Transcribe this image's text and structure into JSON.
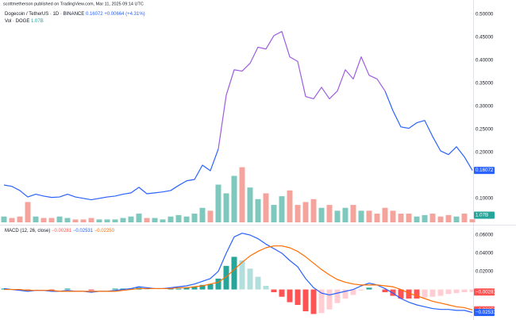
{
  "chart_data": {
    "type": "line",
    "attribution": "scottmetherson published on TradingView.com, Mar 11, 2025 09:14 UTC",
    "title": "Dogecoin / TetherUS · 1D · BINANCE",
    "last_price": "0.16072",
    "change": "+0.00664 (+4.31%)",
    "volume_title": "Vol · DOGE",
    "volume_label": "1.07B",
    "ylim": [
      0.048,
      0.52
    ],
    "yticks": [
      {
        "value": 0.5,
        "label": "0.50000"
      },
      {
        "value": 0.45,
        "label": "0.45000"
      },
      {
        "value": 0.4,
        "label": "0.40000"
      },
      {
        "value": 0.35,
        "label": "0.35000"
      },
      {
        "value": 0.3,
        "label": "0.30000"
      },
      {
        "value": 0.25,
        "label": "0.25000"
      },
      {
        "value": 0.2,
        "label": "0.20000"
      },
      {
        "value": 0.1,
        "label": "0.10000"
      }
    ],
    "series": [
      {
        "color": "#2962ff",
        "values": [
          0.129,
          0.126,
          0.117,
          0.103,
          0.109,
          0.105,
          0.102,
          0.103,
          0.109,
          0.103,
          0.1,
          0.097,
          0.1,
          0.103,
          0.105,
          0.109,
          0.112,
          0.124,
          0.11,
          0.112,
          0.114,
          0.117,
          0.128,
          0.138,
          0.141,
          0.172,
          0.16,
          0.207,
          null,
          null,
          null,
          null,
          null,
          null,
          null,
          null,
          null,
          null,
          null,
          null,
          null,
          null,
          null,
          null,
          null,
          null,
          null,
          null,
          0.333,
          0.29,
          0.255,
          0.252,
          0.264,
          0.269,
          0.234,
          0.203,
          0.195,
          0.212,
          0.19,
          0.16072
        ]
      },
      {
        "color": "#9c5ce0",
        "values": [
          null,
          null,
          null,
          null,
          null,
          null,
          null,
          null,
          null,
          null,
          null,
          null,
          null,
          null,
          null,
          null,
          null,
          null,
          null,
          null,
          null,
          null,
          null,
          null,
          null,
          null,
          null,
          0.207,
          0.324,
          0.379,
          0.376,
          0.393,
          0.428,
          0.424,
          0.453,
          0.462,
          0.407,
          0.397,
          0.321,
          0.316,
          0.341,
          0.316,
          0.333,
          0.379,
          0.359,
          0.407,
          0.367,
          0.359,
          0.333,
          null,
          null,
          null,
          null,
          null,
          null,
          null,
          null,
          null,
          null,
          null
        ]
      }
    ],
    "volume": {
      "up_color": "#7fc8bd",
      "down_color": "#f4a49c",
      "ylim": [
        0,
        75
      ],
      "values": [
        2,
        1.5,
        2,
        7,
        2,
        1.5,
        1.5,
        2,
        1.5,
        1,
        1,
        1.5,
        1,
        1,
        1,
        1.5,
        2,
        3,
        1.5,
        1.5,
        1,
        2,
        2.5,
        2,
        3,
        5,
        4,
        13,
        10,
        16,
        19,
        12,
        8,
        10,
        6,
        9,
        11,
        6,
        7,
        8,
        5,
        6,
        4,
        5,
        6,
        4,
        4,
        3,
        5,
        4,
        3,
        3,
        2,
        2.5,
        3,
        2,
        2.5,
        2,
        3,
        1.07
      ]
    },
    "macd": {
      "legend": "MACD (12, 26, close)",
      "value_labels": [
        "−0.00281",
        "−0.02531",
        "−0.02250"
      ],
      "ylim": [
        -0.031,
        0.067
      ],
      "yticks": [
        {
          "value": 0.06,
          "label": "0.06000"
        },
        {
          "value": 0.04,
          "label": "0.04000"
        },
        {
          "value": 0.02,
          "label": "0.02000"
        }
      ],
      "histogram": {
        "colors": [
          "#26a69a",
          "#b2dfdb",
          "#ffcdd2",
          "#ff5252"
        ],
        "values": [
          0.001,
          0,
          -0.001,
          -0.001,
          0,
          0,
          -0.001,
          0,
          0.001,
          0,
          0,
          -0.001,
          0,
          0,
          0.001,
          0.001,
          0.001,
          0.002,
          0.001,
          0,
          0,
          0.001,
          0.001,
          0.002,
          0.003,
          0.005,
          0.006,
          0.012,
          0.026,
          0.036,
          0.032,
          0.023,
          0.014,
          0.004,
          -0.003,
          -0.008,
          -0.014,
          -0.017,
          -0.024,
          -0.027,
          -0.026,
          -0.022,
          -0.015,
          -0.01,
          -0.006,
          -0.001,
          0.002,
          0,
          -0.003,
          -0.007,
          -0.01,
          -0.01,
          -0.01,
          -0.009,
          -0.008,
          -0.007,
          -0.005,
          -0.004,
          -0.003,
          -0.00281
        ]
      },
      "lines": [
        {
          "color": "#2962ff",
          "values": [
            0.001,
            0,
            -0.001,
            -0.002,
            -0.001,
            -0.001,
            -0.002,
            -0.002,
            -0.001,
            -0.002,
            -0.002,
            -0.003,
            -0.002,
            -0.002,
            -0.001,
            0,
            0.001,
            0.003,
            0.002,
            0.001,
            0.001,
            0.002,
            0.003,
            0.004,
            0.006,
            0.009,
            0.012,
            0.02,
            0.04,
            0.058,
            0.062,
            0.06,
            0.056,
            0.05,
            0.045,
            0.04,
            0.032,
            0.025,
            0.012,
            0.002,
            -0.004,
            -0.006,
            -0.004,
            -0.002,
            0,
            0.004,
            0.007,
            0.005,
            0.001,
            -0.004,
            -0.01,
            -0.014,
            -0.017,
            -0.019,
            -0.021,
            -0.022,
            -0.022,
            -0.023,
            -0.023,
            -0.02531
          ]
        },
        {
          "color": "#ff6d00",
          "values": [
            0,
            0,
            0,
            -0.001,
            -0.001,
            -0.001,
            -0.001,
            -0.002,
            -0.002,
            -0.002,
            -0.002,
            -0.002,
            -0.002,
            -0.002,
            -0.002,
            -0.001,
            0,
            0.001,
            0.001,
            0.001,
            0.001,
            0.001,
            0.002,
            0.002,
            0.003,
            0.004,
            0.006,
            0.008,
            0.014,
            0.022,
            0.03,
            0.037,
            0.042,
            0.046,
            0.048,
            0.048,
            0.046,
            0.042,
            0.036,
            0.029,
            0.022,
            0.016,
            0.011,
            0.008,
            0.006,
            0.005,
            0.005,
            0.005,
            0.004,
            0.003,
            0,
            -0.004,
            -0.007,
            -0.01,
            -0.013,
            -0.015,
            -0.017,
            -0.019,
            -0.02,
            -0.0225
          ]
        }
      ]
    }
  }
}
